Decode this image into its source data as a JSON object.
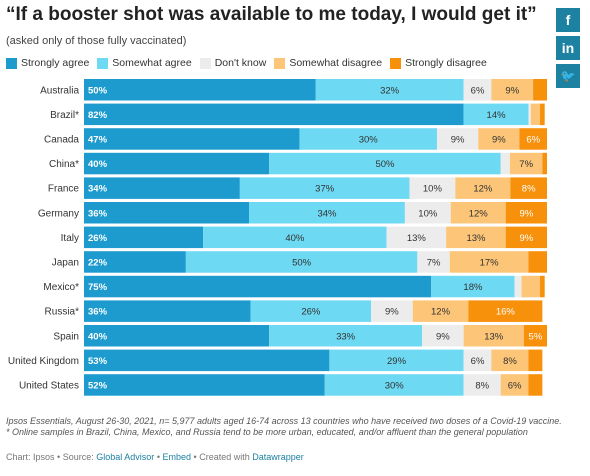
{
  "title": "“If a booster shot was available to me today, I would get it”",
  "subtitle": "(asked only of those fully vaccinated)",
  "social": [
    {
      "name": "facebook",
      "glyph": "f",
      "color": "#1d81a2"
    },
    {
      "name": "linkedin",
      "glyph": "in",
      "color": "#1d81a2"
    },
    {
      "name": "twitter",
      "glyph": "🐦",
      "color": "#1d81a2"
    }
  ],
  "footnote": "Ipsos Essentials, August 26-30, 2021, n= 5,977 adults aged 16-74 across 13 countries who have received two doses of a Covid-19 vaccine. * Online samples in Brazil, China, Mexico, and Russia tend to be more urban, educated, and/or affluent than the general population",
  "credits": {
    "chart": "Chart: Ipsos",
    "source_prefix": "Source:",
    "source": "Global Advisor",
    "embed": "Embed",
    "created_prefix": "Created with",
    "created": "Datawrapper",
    "sep": "•"
  },
  "chart_data": {
    "type": "bar",
    "stacked": true,
    "orientation": "horizontal",
    "unit": "%",
    "xlim": [
      0,
      100
    ],
    "legend_position": "top-left",
    "grid": false,
    "categories": [
      "Australia",
      "Brazil*",
      "Canada",
      "China*",
      "France",
      "Germany",
      "Italy",
      "Japan",
      "Mexico*",
      "Russia*",
      "Spain",
      "United Kingdom",
      "United States"
    ],
    "series": [
      {
        "name": "Strongly agree",
        "color": "#1d9bcf",
        "values": [
          50,
          82,
          47,
          40,
          34,
          36,
          26,
          22,
          75,
          36,
          40,
          53,
          52
        ],
        "labels": [
          "50%",
          "82%",
          "47%",
          "40%",
          "34%",
          "36%",
          "26%",
          "22%",
          "75%",
          "36%",
          "40%",
          "53%",
          "52%"
        ]
      },
      {
        "name": "Somewhat agree",
        "color": "#6dd9f2",
        "values": [
          32,
          14,
          30,
          50,
          37,
          34,
          40,
          50,
          18,
          26,
          33,
          29,
          30
        ],
        "labels": [
          "32%",
          "14%",
          "30%",
          "50%",
          "37%",
          "34%",
          "40%",
          "50%",
          "18%",
          "26%",
          "33%",
          "29%",
          "30%"
        ]
      },
      {
        "name": "Don't know",
        "color": "#ececec",
        "values": [
          6,
          0.5,
          9,
          2,
          10,
          10,
          13,
          7,
          1.5,
          9,
          9,
          6,
          8
        ],
        "labels": [
          "6%",
          "",
          "9%",
          "",
          "10%",
          "10%",
          "13%",
          "7%",
          "",
          "9%",
          "9%",
          "6%",
          "8%"
        ]
      },
      {
        "name": "Somewhat disagree",
        "color": "#fcc577",
        "values": [
          9,
          2,
          9,
          7,
          12,
          12,
          13,
          17,
          4,
          12,
          13,
          8,
          6
        ],
        "labels": [
          "9%",
          "",
          "9%",
          "7%",
          "12%",
          "12%",
          "13%",
          "17%",
          "",
          "12%",
          "13%",
          "8%",
          "6%"
        ]
      },
      {
        "name": "Strongly disagree",
        "color": "#f7900a",
        "values": [
          3,
          1,
          6,
          1,
          8,
          9,
          9,
          4,
          1,
          16,
          5,
          3,
          3
        ],
        "labels": [
          "",
          "",
          "6%",
          "",
          "8%",
          "9%",
          "9%",
          "",
          "",
          "16%",
          "5%",
          "",
          ""
        ]
      }
    ]
  }
}
